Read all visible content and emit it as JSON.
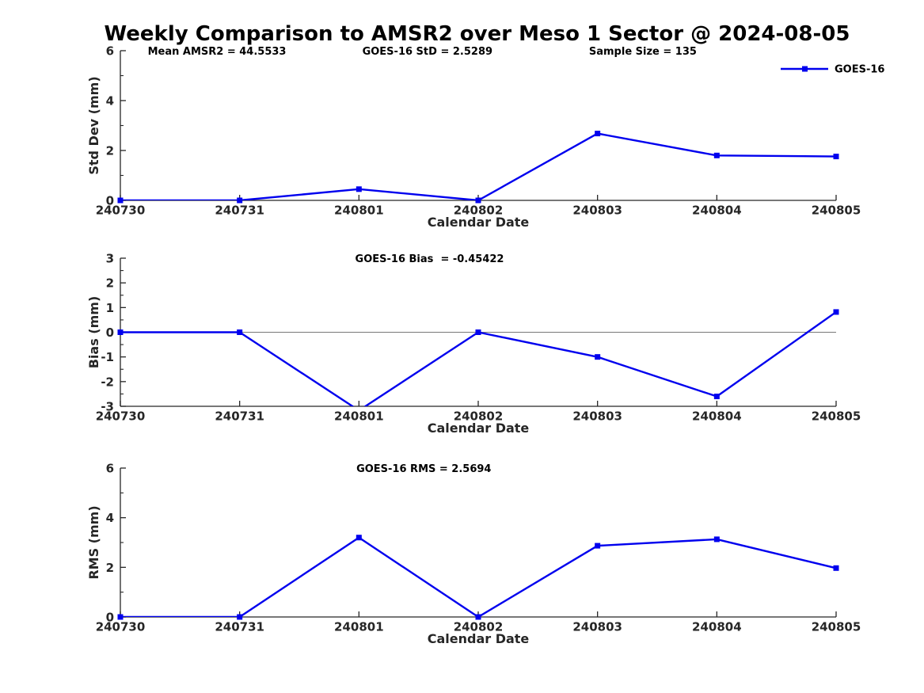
{
  "title": "Weekly Comparison to AMSR2 over Meso 1 Sector @ 2024-08-05",
  "legend": {
    "label": "GOES-16"
  },
  "colors": {
    "series": "#0000EE",
    "axis": "#262626",
    "text": "#000000",
    "zero_line": "#777777"
  },
  "chart_data": [
    {
      "type": "line",
      "name": "std-dev",
      "ylabel": "Std Dev (mm)",
      "xlabel": "Calendar Date",
      "categories": [
        "240730",
        "240731",
        "240801",
        "240802",
        "240803",
        "240804",
        "240805"
      ],
      "series": [
        {
          "name": "GOES-16",
          "values": [
            0,
            0,
            0.45,
            0,
            2.68,
            1.8,
            1.76
          ]
        }
      ],
      "ylim": [
        0,
        6
      ],
      "yticks": [
        0,
        2,
        4,
        6
      ],
      "yticks_minor": [
        1,
        3,
        5
      ],
      "zero_line": false,
      "legend_position": "northeast",
      "annotations": [
        {
          "text": "Mean AMSR2 = 44.5533",
          "xfrac": 0.135
        },
        {
          "text": "GOES-16 StD = 2.5289",
          "xfrac": 0.429
        },
        {
          "text": "Sample Size = 135",
          "xfrac": 0.73
        }
      ]
    },
    {
      "type": "line",
      "name": "bias",
      "ylabel": "Bias (mm)",
      "xlabel": "Calendar Date",
      "categories": [
        "240730",
        "240731",
        "240801",
        "240802",
        "240803",
        "240804",
        "240805"
      ],
      "series": [
        {
          "name": "GOES-16",
          "values": [
            0,
            0,
            -3.17,
            0,
            -1.0,
            -2.6,
            0.82
          ]
        }
      ],
      "ylim": [
        -3,
        3
      ],
      "yticks": [
        -3,
        -2,
        -1,
        0,
        1,
        2,
        3
      ],
      "yticks_minor": [
        -2.5,
        -1.5,
        -0.5,
        0.5,
        1.5,
        2.5
      ],
      "zero_line": true,
      "annotations": [
        {
          "text": "GOES-16 Bias  = -0.45422",
          "xfrac": 0.432
        }
      ]
    },
    {
      "type": "line",
      "name": "rms",
      "ylabel": "RMS (mm)",
      "xlabel": "Calendar Date",
      "categories": [
        "240730",
        "240731",
        "240801",
        "240802",
        "240803",
        "240804",
        "240805"
      ],
      "series": [
        {
          "name": "GOES-16",
          "values": [
            0,
            0,
            3.2,
            0,
            2.87,
            3.13,
            1.97
          ]
        }
      ],
      "ylim": [
        0,
        6
      ],
      "yticks": [
        0,
        2,
        4,
        6
      ],
      "yticks_minor": [
        1,
        3,
        5
      ],
      "zero_line": false,
      "annotations": [
        {
          "text": "GOES-16 RMS = 2.5694",
          "xfrac": 0.424
        }
      ]
    }
  ]
}
